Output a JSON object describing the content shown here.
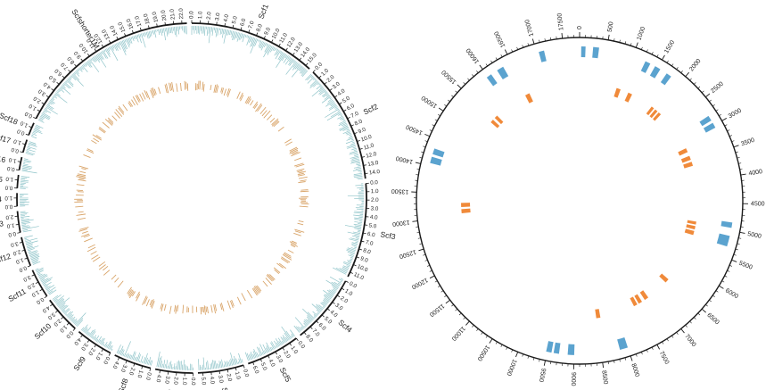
{
  "colors": {
    "axis": "#1a1a1a",
    "left_outer_track": "#8fc4c9",
    "left_inner_track": "#d9a56a",
    "right_outer_blocks": "#5ba3cf",
    "right_inner_blocks": "#f08a3a"
  },
  "left_diagram": {
    "scaffolds": [
      {
        "name": "Scf1",
        "ticks": [
          "0.0",
          "1.0",
          "2.0",
          "3.0",
          "4.0",
          "5.0",
          "6.0",
          "7.0",
          "8.0",
          "9.0",
          "10.0",
          "11.0",
          "12.0",
          "13.0",
          "14.0",
          "15.0"
        ]
      },
      {
        "name": "Scf2",
        "ticks": [
          "0.0",
          "1.0",
          "2.0",
          "3.0",
          "4.0",
          "5.0",
          "6.0",
          "7.0",
          "8.0",
          "9.0",
          "10.0",
          "11.0",
          "12.0",
          "13.0",
          "14.0"
        ]
      },
      {
        "name": "Scf3",
        "ticks": [
          "0.0",
          "1.0",
          "2.0",
          "3.0",
          "4.0",
          "5.0",
          "6.0",
          "7.0",
          "8.0",
          "9.0",
          "10.0",
          "11.0"
        ]
      },
      {
        "name": "Scf4",
        "ticks": [
          "0.0",
          "1.0",
          "2.0",
          "3.0",
          "4.0",
          "5.0",
          "6.0",
          "7.0",
          "8.0"
        ]
      },
      {
        "name": "Scf5",
        "ticks": [
          "0.0",
          "1.0",
          "2.0",
          "3.0",
          "4.0",
          "5.0",
          "6.0"
        ]
      },
      {
        "name": "Scf6",
        "ticks": [
          "0.0",
          "1.0",
          "2.0",
          "3.0",
          "4.0",
          "5.0"
        ]
      },
      {
        "name": "Scf7",
        "ticks": [
          "0.0",
          "1.0",
          "2.0",
          "3.0",
          "4.0"
        ]
      },
      {
        "name": "Scf8",
        "ticks": [
          "0.0",
          "1.0",
          "2.0",
          "3.0",
          "4.0"
        ]
      },
      {
        "name": "Scf9",
        "ticks": [
          "0.0",
          "1.0",
          "2.0",
          "3.0",
          "4.0"
        ]
      },
      {
        "name": "Scf10",
        "ticks": [
          "0.0",
          "1.0",
          "2.0",
          "3.0",
          "4.0"
        ]
      },
      {
        "name": "Scf11",
        "ticks": [
          "0.0",
          "1.0",
          "2.0",
          "3.0"
        ]
      },
      {
        "name": "Scf12",
        "ticks": [
          "0.0",
          "1.0",
          "2.0",
          "3.0"
        ]
      },
      {
        "name": "Scf13",
        "ticks": [
          "0.0",
          "1.0",
          "2.0"
        ]
      },
      {
        "name": "Scf14",
        "ticks": [
          "0.0",
          "1.0"
        ]
      },
      {
        "name": "Scf15",
        "ticks": [
          "0.0",
          "1.0"
        ]
      },
      {
        "name": "Scf16",
        "ticks": [
          "0.0",
          "1.0"
        ]
      },
      {
        "name": "Scf17",
        "ticks": [
          "0.0",
          "1.0"
        ]
      },
      {
        "name": "Scf18",
        "ticks": [
          "0.0",
          "1.0"
        ]
      },
      {
        "name": "Scfshorter1M",
        "ticks": [
          "0.0",
          "1.0",
          "2.0",
          "3.0",
          "4.0",
          "5.0",
          "6.0",
          "7.0",
          "8.0",
          "9.0",
          "10.0",
          "11.0",
          "12.0",
          "13.0",
          "14.0",
          "15.0",
          "16.0",
          "17.0",
          "18.0",
          "19.0",
          "20.0",
          "21.0",
          "22.0"
        ]
      }
    ]
  },
  "right_diagram": {
    "ticks": [
      "0",
      "500",
      "1000",
      "1500",
      "2000",
      "2500",
      "3000",
      "3500",
      "4000",
      "4500",
      "5000",
      "5500",
      "6000",
      "6500",
      "7000",
      "7500",
      "8000",
      "8500",
      "9000",
      "9500",
      "10000",
      "10500",
      "11000",
      "11500",
      "12000",
      "12500",
      "13000",
      "13500",
      "14000",
      "14500",
      "15000",
      "15500",
      "16000",
      "16500",
      "17000",
      "17500"
    ],
    "outer_blocks": [
      {
        "start": 30,
        "end": 110
      },
      {
        "start": 250,
        "end": 360
      },
      {
        "start": 1250,
        "end": 1350
      },
      {
        "start": 1450,
        "end": 1560
      },
      {
        "start": 1700,
        "end": 1800
      },
      {
        "start": 2800,
        "end": 2900
      },
      {
        "start": 2950,
        "end": 3050
      },
      {
        "start": 4850,
        "end": 4950
      },
      {
        "start": 5100,
        "end": 5300
      },
      {
        "start": 8000,
        "end": 8150
      },
      {
        "start": 9000,
        "end": 9120
      },
      {
        "start": 9280,
        "end": 9380
      },
      {
        "start": 9420,
        "end": 9520
      },
      {
        "start": 14050,
        "end": 14170
      },
      {
        "start": 14220,
        "end": 14330
      },
      {
        "start": 15970,
        "end": 16070
      },
      {
        "start": 16200,
        "end": 16330
      },
      {
        "start": 17040,
        "end": 17140
      }
    ],
    "inner_blocks": [
      {
        "start": 900,
        "end": 1000
      },
      {
        "start": 1200,
        "end": 1300
      },
      {
        "start": 1850,
        "end": 1920
      },
      {
        "start": 1960,
        "end": 2030
      },
      {
        "start": 2070,
        "end": 2140
      },
      {
        "start": 3150,
        "end": 3250
      },
      {
        "start": 3350,
        "end": 3450
      },
      {
        "start": 3500,
        "end": 3600
      },
      {
        "start": 4950,
        "end": 5020
      },
      {
        "start": 5060,
        "end": 5140
      },
      {
        "start": 5180,
        "end": 5280
      },
      {
        "start": 6500,
        "end": 6600
      },
      {
        "start": 7150,
        "end": 7250
      },
      {
        "start": 7330,
        "end": 7420
      },
      {
        "start": 7460,
        "end": 7550
      },
      {
        "start": 8400,
        "end": 8500
      },
      {
        "start": 13050,
        "end": 13150
      },
      {
        "start": 13200,
        "end": 13300
      },
      {
        "start": 15400,
        "end": 15480
      },
      {
        "start": 15540,
        "end": 15620
      },
      {
        "start": 16450,
        "end": 16560
      }
    ]
  }
}
